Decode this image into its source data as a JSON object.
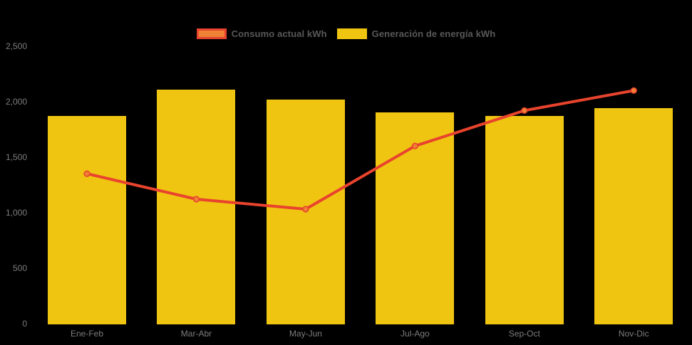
{
  "background_color": "#000000",
  "colors": {
    "bar": "#f0c512",
    "line": "#e8432d",
    "marker_fill": "#ef8234",
    "marker_stroke": "#e8432d",
    "legend_text": "#595959",
    "axis_text": "#7d7d7d"
  },
  "legend": {
    "items": [
      {
        "label": "Consumo actual kWh",
        "type": "line",
        "swatch_fill": "#ef8234",
        "swatch_border": "#e8432d"
      },
      {
        "label": "Generación de energía kWh",
        "type": "bar",
        "swatch_fill": "#f0c512",
        "swatch_border": ""
      }
    ]
  },
  "chart_data": {
    "type": "bar",
    "subtype": "bar-with-line-overlay",
    "title": "",
    "xlabel": "",
    "ylabel": "",
    "categories": [
      "Ene-Feb",
      "Mar-Abr",
      "May-Jun",
      "Jul-Ago",
      "Sep-Oct",
      "Nov-Dic"
    ],
    "series": [
      {
        "name": "Generación de energía kWh",
        "type": "bar",
        "color": "#f0c512",
        "values": [
          1870,
          2110,
          2020,
          1900,
          1870,
          1940
        ]
      },
      {
        "name": "Consumo actual kWh",
        "type": "line",
        "color": "#e8432d",
        "marker_color": "#ef8234",
        "values": [
          1350,
          1120,
          1030,
          1600,
          1920,
          2100
        ]
      }
    ],
    "ylim": [
      0,
      2500
    ],
    "yticks": [
      0,
      500,
      1000,
      1500,
      2000,
      2500
    ],
    "ytick_labels": [
      "0",
      "500",
      "1,000",
      "1,500",
      "2,000",
      "2,500"
    ],
    "grid": false,
    "legend_position": "top-center"
  }
}
